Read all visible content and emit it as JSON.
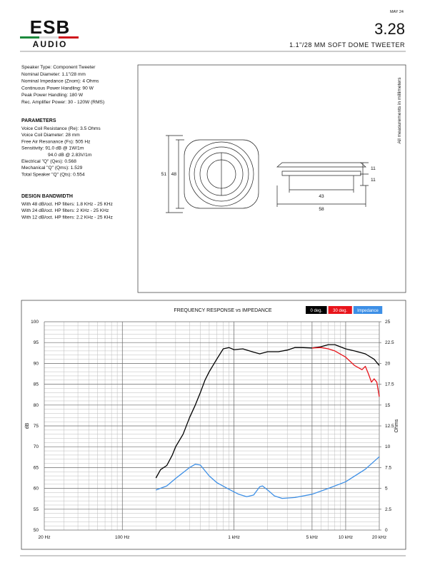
{
  "header": {
    "logo_top": "ESB",
    "logo_bottom": "AUDIO",
    "date": "MAY 24",
    "model": "3.28",
    "product": "1.1\"/28 MM SOFT DOME TWEETER"
  },
  "specs": [
    "Speaker Type: Component Tweeter",
    "Nominal Diameter: 1.1\"/28 mm",
    "Nominal Impedance (Znom): 4 Ohms",
    "Continuous Power Handling: 90 W",
    "Peak Power Handling: 180 W",
    "Rec. Amplifier Power: 30 - 120W (RMS)"
  ],
  "parameters": {
    "title": "PARAMETERS",
    "lines": [
      "Voice Coil Resistance (Re): 3.5 Ohms",
      "Voice Coil Diameter: 28 mm",
      "Free Air Resonance (Fs): 505 Hz",
      "Sensitivity: 91.0 dB @ 1W/1m",
      "94.0 dB @ 2.83V/1m",
      "Electrical \"Q\" (Qes): 0.568",
      "Mechanical \"Q\" (Qms): 1.529",
      "Total Speaker \"Q\" (Qts): 0.554"
    ]
  },
  "bandwidth": {
    "title": "DESIGN BANDWIDTH",
    "lines": [
      "With 48 dB/oct. HP filters: 1.8 KHz - 25 KHz",
      "With 24 dB/oct. HP filters: 2 KHz - 25 KHz",
      "With 12 dB/oct. HP filters: 2.2 KHz - 25 KHz"
    ]
  },
  "drawing": {
    "note": "All measurements in millimeters",
    "outer_height": 51,
    "inner_height": 48,
    "base_width": 43,
    "flange_width": 58,
    "top_height": 11,
    "bottom_height": 11
  },
  "chart_data": {
    "type": "line",
    "title": "FREQUENCY RESPONSE vs IMPEDANCE",
    "ylabel": "dB",
    "y2label": "Ohms",
    "xscale": "log",
    "grid": true,
    "xlim": [
      20,
      20000
    ],
    "xticks": [
      {
        "value": 20,
        "label": "20 Hz"
      },
      {
        "value": 100,
        "label": "100 Hz"
      },
      {
        "value": 1000,
        "label": "1 kHz"
      },
      {
        "value": 5000,
        "label": "5 kHz"
      },
      {
        "value": 10000,
        "label": "10 kHz"
      },
      {
        "value": 20000,
        "label": "20 kHz"
      }
    ],
    "x_minor_ticks": [
      30,
      40,
      50,
      60,
      70,
      80,
      90,
      200,
      300,
      400,
      500,
      600,
      700,
      800,
      900,
      2000,
      3000,
      4000,
      6000,
      7000,
      8000,
      9000
    ],
    "ylim": [
      50,
      100
    ],
    "yticks": [
      50,
      55,
      60,
      65,
      70,
      75,
      80,
      85,
      90,
      95,
      100
    ],
    "y_minor_ticks": [
      51,
      52,
      53,
      54,
      56,
      57,
      58,
      59,
      61,
      62,
      63,
      64,
      66,
      67,
      68,
      69,
      71,
      72,
      73,
      74,
      76,
      77,
      78,
      79,
      81,
      82,
      83,
      84,
      86,
      87,
      88,
      89,
      91,
      92,
      93,
      94,
      96,
      97,
      98,
      99
    ],
    "y2lim": [
      0,
      25
    ],
    "y2ticks": [
      0,
      2.5,
      5,
      7.5,
      10,
      12.5,
      15,
      17.5,
      20,
      22.5,
      25
    ],
    "series": [
      {
        "name": "0 deg.",
        "color": "#000000",
        "x": [
          200,
          220,
          250,
          280,
          300,
          350,
          400,
          450,
          500,
          550,
          600,
          700,
          800,
          900,
          1000,
          1200,
          1500,
          1700,
          2000,
          2500,
          3000,
          3500,
          4000,
          5000,
          6000,
          7000,
          8000,
          10000,
          12000,
          15000,
          18000,
          20000
        ],
        "values": [
          62.5,
          64.5,
          65.5,
          68,
          70,
          73,
          77,
          80,
          83,
          86,
          88,
          91,
          93.5,
          93.8,
          93.3,
          93.5,
          92.7,
          92.3,
          92.8,
          92.8,
          93.2,
          93.8,
          93.8,
          93.7,
          94,
          94.5,
          94.5,
          93.5,
          93,
          92.3,
          91,
          89.5
        ]
      },
      {
        "name": "30 deg.",
        "color": "#e8141b",
        "x": [
          5000,
          6000,
          7000,
          8000,
          10000,
          12000,
          14000,
          15000,
          16000,
          17000,
          18000,
          19000,
          20000
        ],
        "values": [
          93.7,
          93.8,
          93.5,
          93,
          91.5,
          89.5,
          88.5,
          89.3,
          87.5,
          85.5,
          86.3,
          85.5,
          82
        ]
      },
      {
        "name": "Impedance",
        "color": "#3d8fe6",
        "axis": "y2",
        "x": [
          200,
          250,
          300,
          400,
          450,
          500,
          600,
          700,
          900,
          1100,
          1300,
          1500,
          1700,
          1800,
          2000,
          2300,
          2700,
          3500,
          5000,
          7000,
          10000,
          15000,
          20000
        ],
        "values": [
          4.8,
          5.3,
          6.2,
          7.5,
          7.9,
          7.8,
          6.5,
          5.7,
          4.9,
          4.3,
          4.0,
          4.2,
          5.2,
          5.3,
          4.8,
          4.1,
          3.8,
          3.9,
          4.3,
          5.0,
          5.8,
          7.3,
          8.8
        ]
      }
    ]
  }
}
